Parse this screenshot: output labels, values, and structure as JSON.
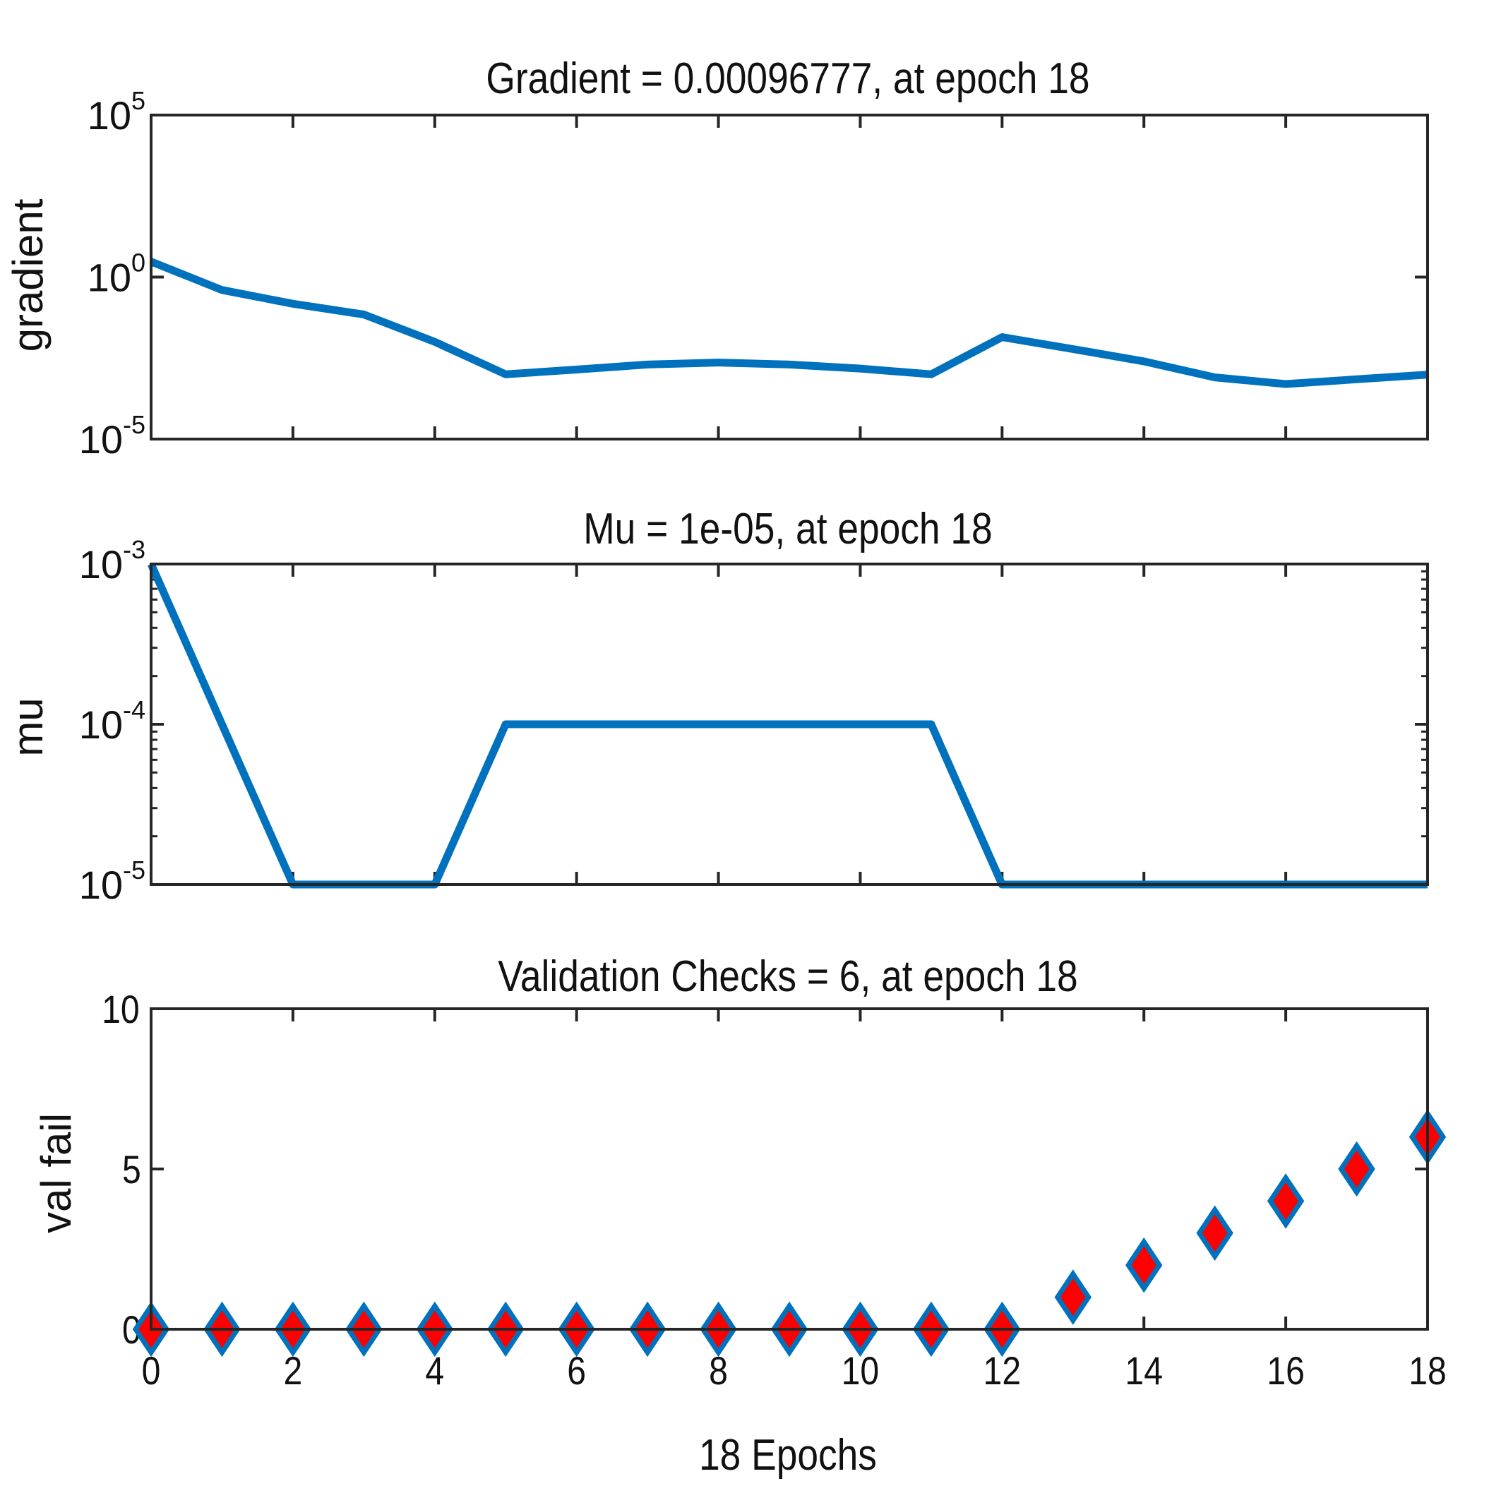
{
  "chart_data": [
    {
      "type": "line",
      "title": "Gradient = 0.00096777, at epoch 18",
      "ylabel": "gradient",
      "xlabel": "",
      "yscale": "log",
      "ylim": [
        1e-05,
        100000
      ],
      "xlim": [
        0,
        18
      ],
      "yticks": [
        {
          "base": "10",
          "exp": "5",
          "value": 100000
        },
        {
          "base": "10",
          "exp": "0",
          "value": 1
        },
        {
          "base": "10",
          "exp": "-5",
          "value": 1e-05
        }
      ],
      "x": [
        0,
        1,
        2,
        3,
        4,
        5,
        6,
        7,
        8,
        9,
        10,
        11,
        12,
        13,
        14,
        15,
        16,
        17,
        18
      ],
      "series": [
        {
          "values": [
            3.0,
            0.4,
            0.15,
            0.07,
            0.01,
            0.001,
            0.0014,
            0.002,
            0.0023,
            0.002,
            0.0015,
            0.001,
            0.014,
            0.006,
            0.0025,
            0.0008,
            0.0005,
            0.0007,
            0.00097
          ],
          "color": "#0072bd"
        }
      ],
      "grid": false
    },
    {
      "type": "line",
      "title": "Mu = 1e-05, at epoch 18",
      "ylabel": "mu",
      "xlabel": "",
      "yscale": "log",
      "ylim": [
        1e-05,
        0.001
      ],
      "xlim": [
        0,
        18
      ],
      "yticks": [
        {
          "base": "10",
          "exp": "-3",
          "value": 0.001
        },
        {
          "base": "10",
          "exp": "-4",
          "value": 0.0001
        },
        {
          "base": "10",
          "exp": "-5",
          "value": 1e-05
        }
      ],
      "x": [
        0,
        1,
        2,
        3,
        4,
        5,
        6,
        7,
        8,
        9,
        10,
        11,
        12,
        13,
        14,
        15,
        16,
        17,
        18
      ],
      "series": [
        {
          "values": [
            0.001,
            0.0001,
            1e-05,
            1e-05,
            1e-05,
            0.0001,
            0.0001,
            0.0001,
            0.0001,
            0.0001,
            0.0001,
            0.0001,
            1e-05,
            1e-05,
            1e-05,
            1e-05,
            1e-05,
            1e-05,
            1e-05
          ],
          "color": "#0072bd"
        }
      ],
      "grid": false
    },
    {
      "type": "scatter",
      "title": "Validation Checks = 6, at epoch 18",
      "ylabel": "val fail",
      "xlabel": "18 Epochs",
      "yscale": "linear",
      "ylim": [
        0,
        10
      ],
      "xlim": [
        0,
        18
      ],
      "yticks": [
        {
          "base": "10",
          "exp": "",
          "value": 10
        },
        {
          "base": "5",
          "exp": "",
          "value": 5
        },
        {
          "base": "0",
          "exp": "",
          "value": 0
        }
      ],
      "xticks": [
        "0",
        "2",
        "4",
        "6",
        "8",
        "10",
        "12",
        "14",
        "16",
        "18"
      ],
      "x": [
        0,
        1,
        2,
        3,
        4,
        5,
        6,
        7,
        8,
        9,
        10,
        11,
        12,
        13,
        14,
        15,
        16,
        17,
        18
      ],
      "series": [
        {
          "values": [
            0,
            0,
            0,
            0,
            0,
            0,
            0,
            0,
            0,
            0,
            0,
            0,
            0,
            1,
            2,
            3,
            4,
            5,
            6
          ],
          "marker": "diamond",
          "fill": "#ff0000",
          "edge": "#0072bd"
        }
      ],
      "grid": false
    }
  ]
}
